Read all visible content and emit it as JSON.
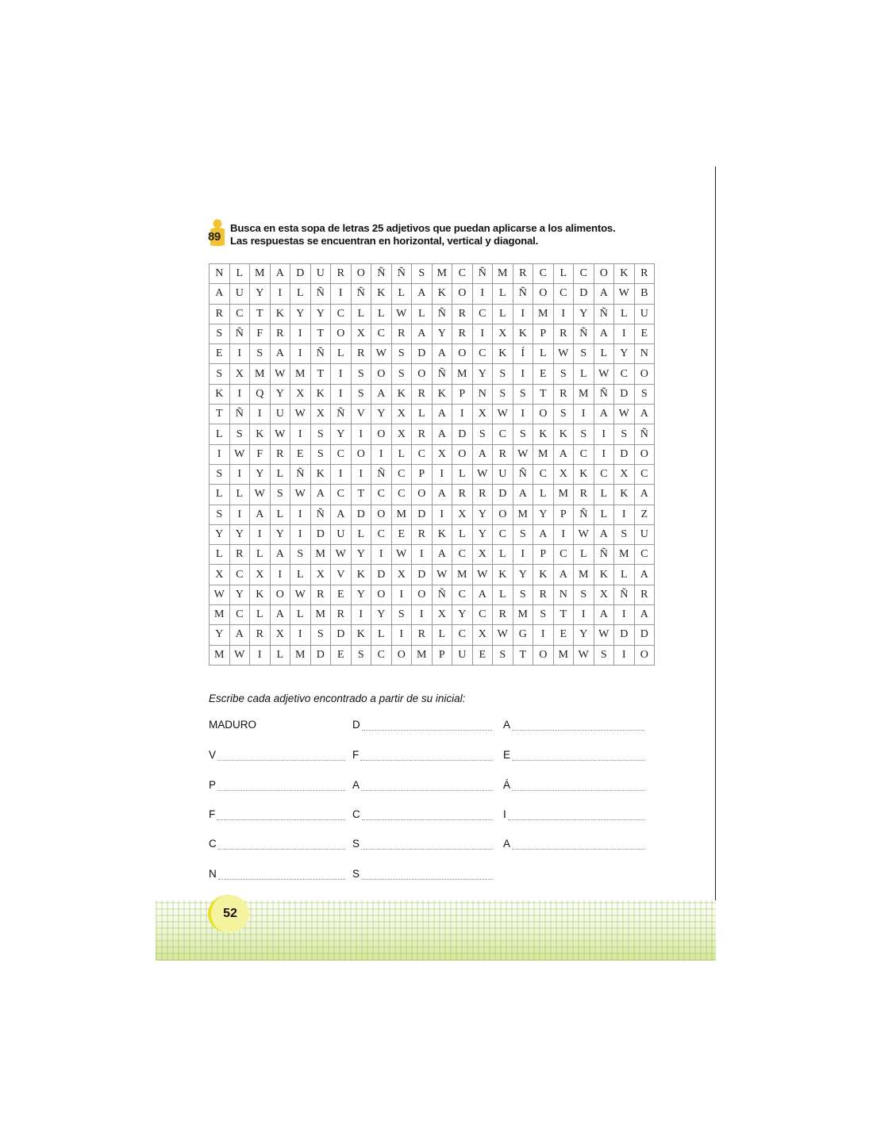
{
  "exercise": {
    "number": "89",
    "instruction_line1": "Busca en esta sopa de letras 25 adjetivos que puedan aplicarse a los alimentos.",
    "instruction_line2": "Las respuestas se encuentran en horizontal, vertical y diagonal."
  },
  "grid": [
    "NLMADUROÑÑSMCÑMRCLCOKR",
    "AUYILÑIÑKLAKOILÑOCDAWB",
    "RCTKYYCLLWLÑRCLIMIYÑLU",
    "SÑFRITOXCRAYRIXKPRÑAIE",
    "EISAIÑLRWSDAOCKÍLWSLYN",
    "SXMWMTISOSOÑMYSIESLWCO",
    "KIQYXKISAKRKPNSSTRMÑDS",
    "TÑIUWXÑVYXLAIXWIOSIAWA",
    "LSKWISYIOXRADSCSKKSISÑ",
    "IWFRESCOILCXOARWMACIDO",
    "SIYLÑKIIÑCPILWUÑCXKCXC",
    "LLWSWACTCCOARRDALMRLKA",
    "SIALIÑADOMDIXYOMYPÑLIZ",
    "YYIYIDULCERKLYCSAIWASU",
    "LRLASMWYIWIACXLIPCLÑMC",
    "XCXILXVKDXDWMWKYKAMKLA",
    "WYKOWREYOIOÑCALSRNSXÑR",
    "MCLALMRIYSIXYCRMSTIAIA",
    "YARXISDKLIRLCXWGIEYWDD",
    "MWILMDESCOMPUESTOMWSIO"
  ],
  "answers": {
    "subtitle": "Escribe cada adjetivo encontrado a partir de su inicial:",
    "items": [
      "MADURO",
      "D",
      "A",
      "V",
      "F",
      "E",
      "P",
      "A",
      "Á",
      "F",
      "C",
      "I",
      "C",
      "S",
      "A",
      "N",
      "S"
    ]
  },
  "page_number": "52",
  "colors": {
    "accent_yellow": "#f2c230",
    "page_circle": "#f6f3a0",
    "footer_green": "#b8d460"
  }
}
